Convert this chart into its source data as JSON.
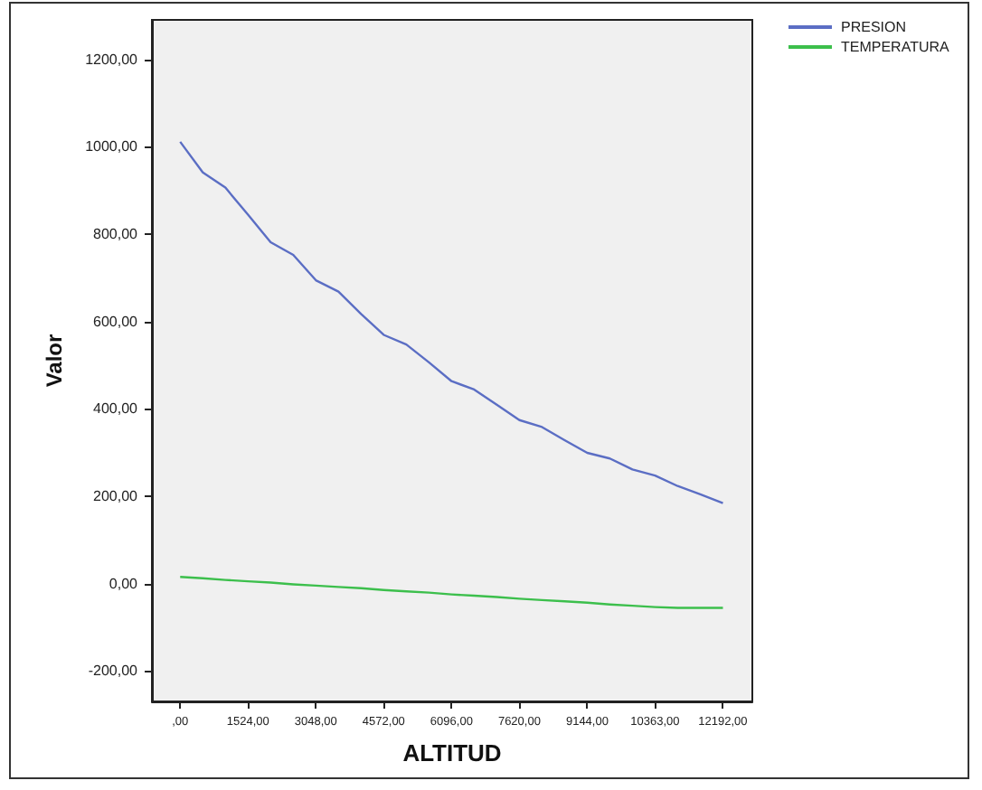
{
  "chart_data": {
    "type": "line",
    "xlabel": "ALTITUD",
    "ylabel": "Valor",
    "categories": [
      ",00",
      null,
      null,
      "1524,00",
      null,
      null,
      "3048,00",
      null,
      null,
      "4572,00",
      null,
      null,
      "6096,00",
      null,
      null,
      "7620,00",
      null,
      null,
      "9144,00",
      null,
      null,
      "10363,00",
      null,
      null,
      "12192,00"
    ],
    "series": [
      {
        "name": "PRESION",
        "color": "#5b6ec4",
        "values": [
          1011,
          941,
          906,
          844,
          781,
          752,
          694,
          668,
          617,
          569,
          547,
          506,
          463,
          444,
          409,
          374,
          358,
          328,
          299,
          286,
          261,
          247,
          223,
          204,
          184
        ]
      },
      {
        "name": "TEMPERATURA",
        "color": "#3cbf4c",
        "values": [
          15,
          12,
          8,
          5,
          2,
          -2,
          -5,
          -8,
          -11,
          -15,
          -18,
          -21,
          -25,
          -28,
          -31,
          -35,
          -38,
          -41,
          -44,
          -48,
          -51,
          -54,
          -56,
          -56,
          -56
        ]
      }
    ],
    "ylim": [
      -270,
      1290
    ],
    "yticks": [
      {
        "value": -200,
        "label": "-200,00"
      },
      {
        "value": 0,
        "label": "0,00"
      },
      {
        "value": 200,
        "label": "200,00"
      },
      {
        "value": 400,
        "label": "400,00"
      },
      {
        "value": 600,
        "label": "600,00"
      },
      {
        "value": 800,
        "label": "800,00"
      },
      {
        "value": 1000,
        "label": "1000,00"
      },
      {
        "value": 1200,
        "label": "1200,00"
      }
    ],
    "grid": false,
    "legend": "top right",
    "marker": "none",
    "line_style": "solid"
  }
}
